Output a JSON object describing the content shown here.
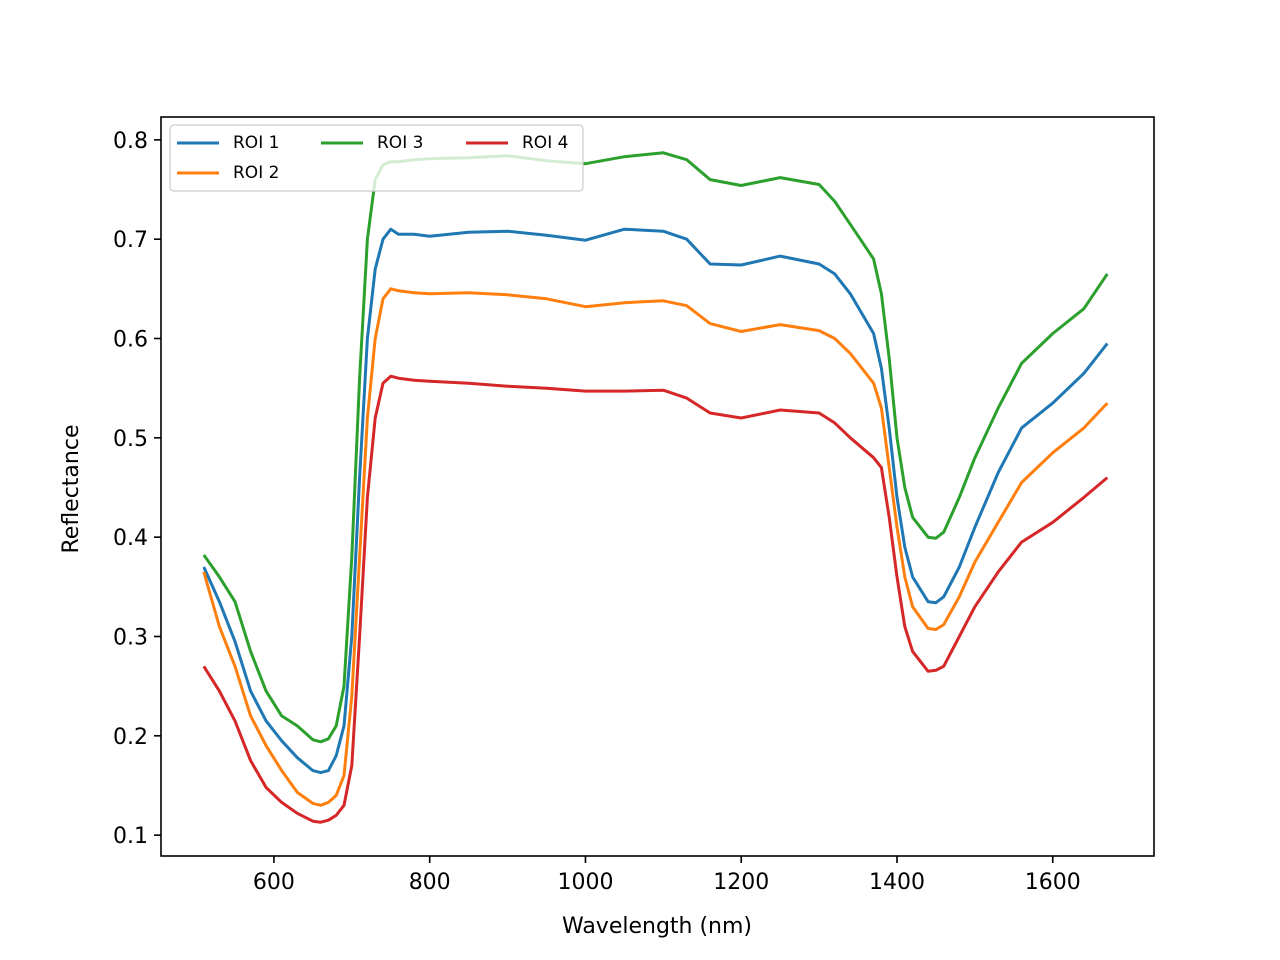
{
  "chart_data": {
    "type": "line",
    "xlabel": "Wavelength (nm)",
    "ylabel": "Reflectance",
    "xlim": [
      455,
      1730
    ],
    "ylim": [
      0.079,
      0.823
    ],
    "x_ticks": [
      600,
      800,
      1000,
      1200,
      1400,
      1600
    ],
    "y_ticks": [
      0.1,
      0.2,
      0.3,
      0.4,
      0.5,
      0.6,
      0.7,
      0.8
    ],
    "x_tick_labels": [
      "600",
      "800",
      "1000",
      "1200",
      "1400",
      "1600"
    ],
    "y_tick_labels": [
      "0.1",
      "0.2",
      "0.3",
      "0.4",
      "0.5",
      "0.6",
      "0.7",
      "0.8"
    ],
    "grid": false,
    "legend": {
      "placement": "top-left",
      "columns": 3
    },
    "x": [
      510,
      530,
      550,
      570,
      590,
      610,
      630,
      650,
      660,
      670,
      680,
      690,
      700,
      710,
      720,
      730,
      740,
      750,
      760,
      780,
      800,
      850,
      900,
      950,
      1000,
      1050,
      1100,
      1130,
      1160,
      1200,
      1250,
      1300,
      1320,
      1340,
      1370,
      1380,
      1390,
      1400,
      1410,
      1420,
      1440,
      1450,
      1460,
      1480,
      1500,
      1530,
      1560,
      1600,
      1640,
      1670
    ],
    "series": [
      {
        "name": "ROI 1",
        "color": "#1f77b4",
        "values": [
          0.37,
          0.335,
          0.295,
          0.245,
          0.215,
          0.195,
          0.178,
          0.165,
          0.163,
          0.165,
          0.18,
          0.21,
          0.3,
          0.46,
          0.6,
          0.67,
          0.7,
          0.71,
          0.705,
          0.705,
          0.703,
          0.707,
          0.708,
          0.704,
          0.699,
          0.71,
          0.708,
          0.7,
          0.675,
          0.674,
          0.683,
          0.675,
          0.665,
          0.645,
          0.605,
          0.57,
          0.51,
          0.44,
          0.39,
          0.36,
          0.335,
          0.334,
          0.34,
          0.37,
          0.41,
          0.465,
          0.51,
          0.535,
          0.565,
          0.595
        ]
      },
      {
        "name": "ROI 2",
        "color": "#ff7f0e",
        "values": [
          0.365,
          0.31,
          0.27,
          0.22,
          0.19,
          0.165,
          0.143,
          0.132,
          0.13,
          0.133,
          0.14,
          0.16,
          0.24,
          0.38,
          0.52,
          0.6,
          0.64,
          0.65,
          0.648,
          0.646,
          0.645,
          0.646,
          0.644,
          0.64,
          0.632,
          0.636,
          0.638,
          0.633,
          0.615,
          0.607,
          0.614,
          0.608,
          0.6,
          0.585,
          0.555,
          0.53,
          0.47,
          0.41,
          0.36,
          0.33,
          0.308,
          0.307,
          0.312,
          0.34,
          0.375,
          0.415,
          0.455,
          0.485,
          0.51,
          0.535
        ]
      },
      {
        "name": "ROI 3",
        "color": "#2ca02c",
        "values": [
          0.382,
          0.36,
          0.335,
          0.285,
          0.245,
          0.22,
          0.21,
          0.196,
          0.194,
          0.197,
          0.21,
          0.25,
          0.38,
          0.56,
          0.7,
          0.76,
          0.775,
          0.778,
          0.778,
          0.78,
          0.781,
          0.782,
          0.784,
          0.779,
          0.776,
          0.783,
          0.787,
          0.78,
          0.76,
          0.754,
          0.762,
          0.755,
          0.738,
          0.715,
          0.68,
          0.645,
          0.58,
          0.5,
          0.45,
          0.42,
          0.4,
          0.399,
          0.405,
          0.44,
          0.48,
          0.53,
          0.575,
          0.605,
          0.63,
          0.665
        ]
      },
      {
        "name": "ROI 4",
        "color": "#d62728",
        "values": [
          0.27,
          0.245,
          0.215,
          0.175,
          0.148,
          0.133,
          0.122,
          0.114,
          0.113,
          0.115,
          0.12,
          0.13,
          0.17,
          0.3,
          0.44,
          0.52,
          0.555,
          0.562,
          0.56,
          0.558,
          0.557,
          0.555,
          0.552,
          0.55,
          0.547,
          0.547,
          0.548,
          0.54,
          0.525,
          0.52,
          0.528,
          0.525,
          0.515,
          0.5,
          0.48,
          0.47,
          0.42,
          0.36,
          0.31,
          0.285,
          0.265,
          0.266,
          0.27,
          0.3,
          0.33,
          0.365,
          0.395,
          0.415,
          0.44,
          0.46
        ]
      }
    ]
  }
}
